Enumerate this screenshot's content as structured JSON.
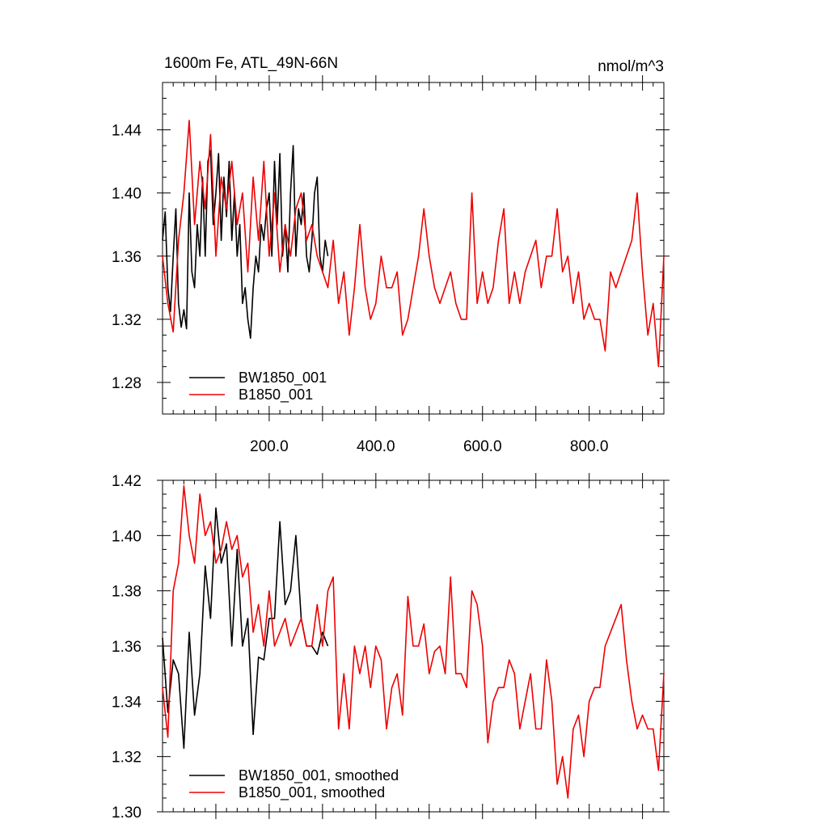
{
  "chart_data": [
    {
      "type": "line",
      "title_left": "1600m Fe, ATL_49N-66N",
      "title_right": "nmol/m^3",
      "xlim": [
        0,
        940
      ],
      "ylim": [
        1.26,
        1.47
      ],
      "yticks": [
        1.28,
        1.32,
        1.36,
        1.4,
        1.44
      ],
      "ytick_labels": [
        "1.28",
        "1.32",
        "1.36",
        "1.40",
        "1.44"
      ],
      "xticks": [
        200,
        400,
        600,
        800
      ],
      "xtick_labels": [
        "200.0",
        "400.0",
        "600.0",
        "800.0"
      ],
      "legend_position": "bottom-left",
      "series": [
        {
          "name": "BW1850_001",
          "color": "#000000",
          "x": [
            0,
            5,
            10,
            15,
            20,
            25,
            30,
            35,
            40,
            45,
            50,
            55,
            60,
            65,
            70,
            75,
            80,
            85,
            90,
            95,
            100,
            105,
            110,
            115,
            120,
            125,
            130,
            135,
            140,
            145,
            150,
            155,
            160,
            165,
            170,
            175,
            180,
            185,
            190,
            195,
            200,
            205,
            210,
            215,
            220,
            225,
            230,
            235,
            240,
            245,
            250,
            255,
            260,
            265,
            270,
            275,
            280,
            285,
            290,
            295,
            300,
            305,
            310
          ],
          "y": [
            1.37,
            1.388,
            1.34,
            1.325,
            1.36,
            1.39,
            1.33,
            1.315,
            1.326,
            1.314,
            1.4,
            1.35,
            1.34,
            1.38,
            1.36,
            1.41,
            1.36,
            1.42,
            1.427,
            1.38,
            1.4,
            1.425,
            1.37,
            1.41,
            1.385,
            1.42,
            1.37,
            1.4,
            1.36,
            1.38,
            1.33,
            1.34,
            1.32,
            1.308,
            1.34,
            1.36,
            1.35,
            1.38,
            1.37,
            1.39,
            1.4,
            1.36,
            1.42,
            1.38,
            1.425,
            1.36,
            1.38,
            1.35,
            1.4,
            1.43,
            1.36,
            1.39,
            1.38,
            1.4,
            1.36,
            1.35,
            1.37,
            1.4,
            1.41,
            1.36,
            1.35,
            1.37,
            1.36
          ]
        },
        {
          "name": "B1850_001",
          "color": "#ee0000",
          "x": [
            0,
            10,
            20,
            30,
            40,
            50,
            60,
            70,
            80,
            90,
            100,
            110,
            120,
            130,
            140,
            150,
            160,
            170,
            180,
            190,
            200,
            210,
            220,
            230,
            240,
            250,
            260,
            270,
            280,
            290,
            300,
            310,
            320,
            330,
            340,
            350,
            360,
            370,
            380,
            390,
            400,
            410,
            420,
            430,
            440,
            450,
            460,
            470,
            480,
            490,
            500,
            510,
            520,
            530,
            540,
            550,
            560,
            570,
            580,
            590,
            600,
            610,
            620,
            630,
            640,
            650,
            660,
            670,
            680,
            690,
            700,
            710,
            720,
            730,
            740,
            750,
            760,
            770,
            780,
            790,
            800,
            810,
            820,
            830,
            840,
            850,
            860,
            870,
            880,
            890,
            900,
            910,
            920,
            930,
            940
          ],
          "y": [
            1.36,
            1.33,
            1.312,
            1.37,
            1.4,
            1.446,
            1.38,
            1.42,
            1.39,
            1.437,
            1.36,
            1.41,
            1.39,
            1.42,
            1.38,
            1.4,
            1.35,
            1.41,
            1.37,
            1.42,
            1.36,
            1.4,
            1.35,
            1.38,
            1.36,
            1.39,
            1.4,
            1.37,
            1.38,
            1.36,
            1.35,
            1.34,
            1.37,
            1.33,
            1.35,
            1.31,
            1.34,
            1.38,
            1.34,
            1.32,
            1.33,
            1.36,
            1.34,
            1.34,
            1.35,
            1.31,
            1.32,
            1.34,
            1.36,
            1.39,
            1.36,
            1.34,
            1.33,
            1.34,
            1.35,
            1.33,
            1.32,
            1.32,
            1.4,
            1.33,
            1.35,
            1.33,
            1.34,
            1.37,
            1.39,
            1.33,
            1.35,
            1.33,
            1.35,
            1.36,
            1.37,
            1.34,
            1.36,
            1.36,
            1.39,
            1.35,
            1.36,
            1.33,
            1.35,
            1.32,
            1.33,
            1.32,
            1.32,
            1.3,
            1.35,
            1.34,
            1.35,
            1.36,
            1.37,
            1.4,
            1.35,
            1.31,
            1.33,
            1.29,
            1.36
          ]
        }
      ]
    },
    {
      "type": "line",
      "xlim": [
        0,
        940
      ],
      "ylim": [
        1.3,
        1.42
      ],
      "yticks": [
        1.3,
        1.32,
        1.34,
        1.36,
        1.38,
        1.4,
        1.42
      ],
      "ytick_labels": [
        "1.30",
        "1.32",
        "1.34",
        "1.36",
        "1.38",
        "1.40",
        "1.42"
      ],
      "legend_position": "bottom-left",
      "series": [
        {
          "name": "BW1850_001, smoothed",
          "color": "#000000",
          "x": [
            0,
            10,
            20,
            30,
            40,
            50,
            60,
            70,
            80,
            90,
            100,
            110,
            120,
            130,
            140,
            150,
            160,
            170,
            180,
            190,
            200,
            210,
            220,
            230,
            240,
            250,
            260,
            270,
            280,
            290,
            300,
            310
          ],
          "y": [
            1.363,
            1.336,
            1.355,
            1.35,
            1.323,
            1.365,
            1.335,
            1.35,
            1.389,
            1.37,
            1.41,
            1.39,
            1.397,
            1.36,
            1.395,
            1.36,
            1.37,
            1.328,
            1.356,
            1.355,
            1.37,
            1.37,
            1.405,
            1.375,
            1.38,
            1.4,
            1.37,
            1.36,
            1.36,
            1.357,
            1.365,
            1.36
          ]
        },
        {
          "name": "B1850_001, smoothed",
          "color": "#ee0000",
          "x": [
            0,
            10,
            20,
            30,
            40,
            50,
            60,
            70,
            80,
            90,
            100,
            110,
            120,
            130,
            140,
            150,
            160,
            170,
            180,
            190,
            200,
            210,
            220,
            230,
            240,
            250,
            260,
            270,
            280,
            290,
            300,
            310,
            320,
            330,
            340,
            350,
            360,
            370,
            380,
            390,
            400,
            410,
            420,
            430,
            440,
            450,
            460,
            470,
            480,
            490,
            500,
            510,
            520,
            530,
            540,
            550,
            560,
            570,
            580,
            590,
            600,
            610,
            620,
            630,
            640,
            650,
            660,
            670,
            680,
            690,
            700,
            710,
            720,
            730,
            740,
            750,
            760,
            770,
            780,
            790,
            800,
            810,
            820,
            830,
            840,
            850,
            860,
            870,
            880,
            890,
            900,
            910,
            920,
            930,
            940
          ],
          "y": [
            1.345,
            1.327,
            1.38,
            1.39,
            1.418,
            1.4,
            1.39,
            1.415,
            1.4,
            1.405,
            1.39,
            1.395,
            1.405,
            1.395,
            1.4,
            1.385,
            1.39,
            1.365,
            1.375,
            1.36,
            1.38,
            1.36,
            1.365,
            1.37,
            1.36,
            1.365,
            1.37,
            1.36,
            1.36,
            1.375,
            1.36,
            1.38,
            1.385,
            1.33,
            1.35,
            1.33,
            1.36,
            1.35,
            1.36,
            1.345,
            1.36,
            1.355,
            1.33,
            1.345,
            1.35,
            1.335,
            1.378,
            1.36,
            1.36,
            1.368,
            1.35,
            1.358,
            1.36,
            1.35,
            1.385,
            1.35,
            1.35,
            1.345,
            1.38,
            1.375,
            1.36,
            1.325,
            1.34,
            1.345,
            1.345,
            1.355,
            1.35,
            1.33,
            1.34,
            1.35,
            1.33,
            1.33,
            1.355,
            1.34,
            1.31,
            1.32,
            1.305,
            1.33,
            1.335,
            1.32,
            1.34,
            1.345,
            1.345,
            1.36,
            1.365,
            1.37,
            1.375,
            1.355,
            1.34,
            1.33,
            1.335,
            1.33,
            1.33,
            1.315,
            1.35
          ]
        }
      ]
    }
  ]
}
